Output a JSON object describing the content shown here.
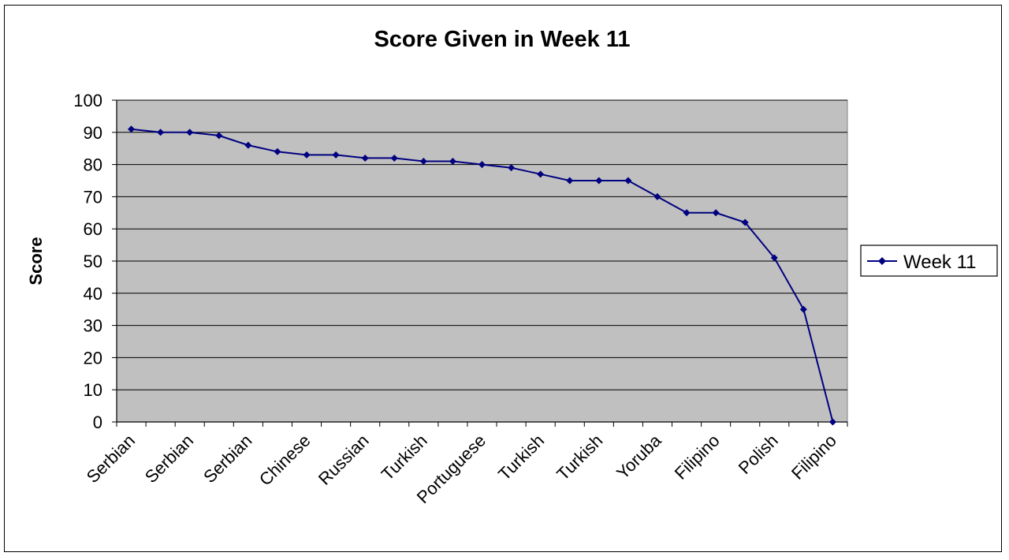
{
  "chart_data": {
    "type": "line",
    "title": "Score Given in Week 11",
    "xlabel": "",
    "ylabel": "Score",
    "ylim": [
      0,
      100
    ],
    "yticks": [
      0,
      10,
      20,
      30,
      40,
      50,
      60,
      70,
      80,
      90,
      100
    ],
    "xtick_labels": [
      "Serbian",
      "Serbian",
      "Serbian",
      "Chinese",
      "Russian",
      "Turkish",
      "Portuguese",
      "Turkish",
      "Turkish",
      "Yoruba",
      "Filipino",
      "Polish",
      "Filipino"
    ],
    "grid": true,
    "legend": "right",
    "series": [
      {
        "name": "Week 11",
        "color": "#000080",
        "marker": "diamond",
        "values": [
          91,
          90,
          90,
          89,
          86,
          84,
          83,
          83,
          82,
          82,
          81,
          81,
          80,
          79,
          77,
          75,
          75,
          75,
          70,
          65,
          65,
          62,
          51,
          35,
          0
        ]
      }
    ],
    "colors": {
      "plot_background": "#c0c0c0",
      "line": "#000080"
    }
  }
}
